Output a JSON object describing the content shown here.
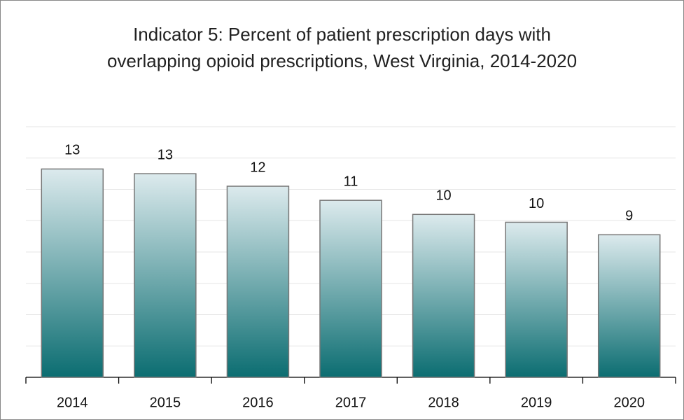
{
  "chart_data": {
    "type": "bar",
    "title": "Indicator 5: Percent of patient prescription days with overlapping opioid prescriptions, West Virginia, 2014-2020",
    "categories": [
      "2014",
      "2015",
      "2016",
      "2017",
      "2018",
      "2019",
      "2020"
    ],
    "values": [
      13.3,
      13.0,
      12.2,
      11.3,
      10.4,
      9.9,
      9.1
    ],
    "value_labels": [
      "13",
      "13",
      "12",
      "11",
      "10",
      "10",
      "9"
    ],
    "color_top": "#dceaed",
    "color_bottom": "#0b6d71",
    "ylim": [
      0,
      16
    ],
    "yticks": [
      2,
      4,
      6,
      8,
      10,
      12,
      14,
      16
    ],
    "grid": true,
    "ytick_labels": false
  }
}
